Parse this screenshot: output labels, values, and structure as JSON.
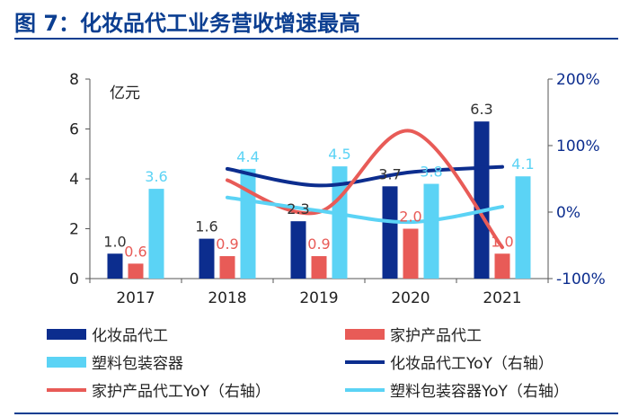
{
  "header": {
    "title": "图 7：化妆品代工业务营收增速最高"
  },
  "chart_data": {
    "type": "bar",
    "categories": [
      "2017",
      "2018",
      "2019",
      "2020",
      "2021"
    ],
    "y_left": {
      "label": "亿元",
      "min": 0,
      "max": 8,
      "ticks": [
        "0",
        "2",
        "4",
        "6",
        "8"
      ]
    },
    "y_right": {
      "min": -100,
      "max": 200,
      "ticks": [
        "-100%",
        "0%",
        "100%",
        "200%"
      ]
    },
    "bar_series": [
      {
        "name": "化妆品代工",
        "color": "#0c2d8e",
        "values": [
          1.0,
          1.6,
          2.3,
          3.7,
          6.3
        ],
        "labels": [
          "1.0",
          "1.6",
          "2.3",
          "3.7",
          "6.3"
        ],
        "label_color": "#333333"
      },
      {
        "name": "家护产品代工",
        "color": "#e85b57",
        "values": [
          0.6,
          0.9,
          0.9,
          2.0,
          1.0
        ],
        "labels": [
          "0.6",
          "0.9",
          "0.9",
          "2.0",
          "1.0"
        ],
        "label_color": "#e85b57"
      },
      {
        "name": "塑料包装容器",
        "color": "#5bd3f5",
        "values": [
          3.6,
          4.4,
          4.5,
          3.8,
          4.1
        ],
        "labels": [
          "3.6",
          "4.4",
          "4.5",
          "3.8",
          "4.1"
        ],
        "label_color": "#5bd3f5"
      }
    ],
    "line_series": [
      {
        "name": "化妆品代工YoY（右轴）",
        "color": "#0c2d8e",
        "values": [
          65,
          40,
          60,
          68
        ]
      },
      {
        "name": "家护产品代工YoY（右轴）",
        "color": "#e85b57",
        "values": [
          48,
          0,
          122,
          -53
        ]
      },
      {
        "name": "塑料包装容器YoY（右轴）",
        "color": "#5bd3f5",
        "values": [
          22,
          2,
          -15,
          8
        ]
      }
    ],
    "line_series_start_index": 1,
    "legend": [
      {
        "name": "化妆品代工",
        "kind": "bar",
        "color": "#0c2d8e"
      },
      {
        "name": "家护产品代工",
        "kind": "bar",
        "color": "#e85b57"
      },
      {
        "name": "塑料包装容器",
        "kind": "bar",
        "color": "#5bd3f5"
      },
      {
        "name": "化妆品代工YoY（右轴）",
        "kind": "line",
        "color": "#0c2d8e"
      },
      {
        "name": "家护产品代工YoY（右轴）",
        "kind": "line",
        "color": "#e85b57"
      },
      {
        "name": "塑料包装容器YoY（右轴）",
        "kind": "line",
        "color": "#5bd3f5"
      }
    ],
    "legend_position": "bottom",
    "grid": false
  }
}
